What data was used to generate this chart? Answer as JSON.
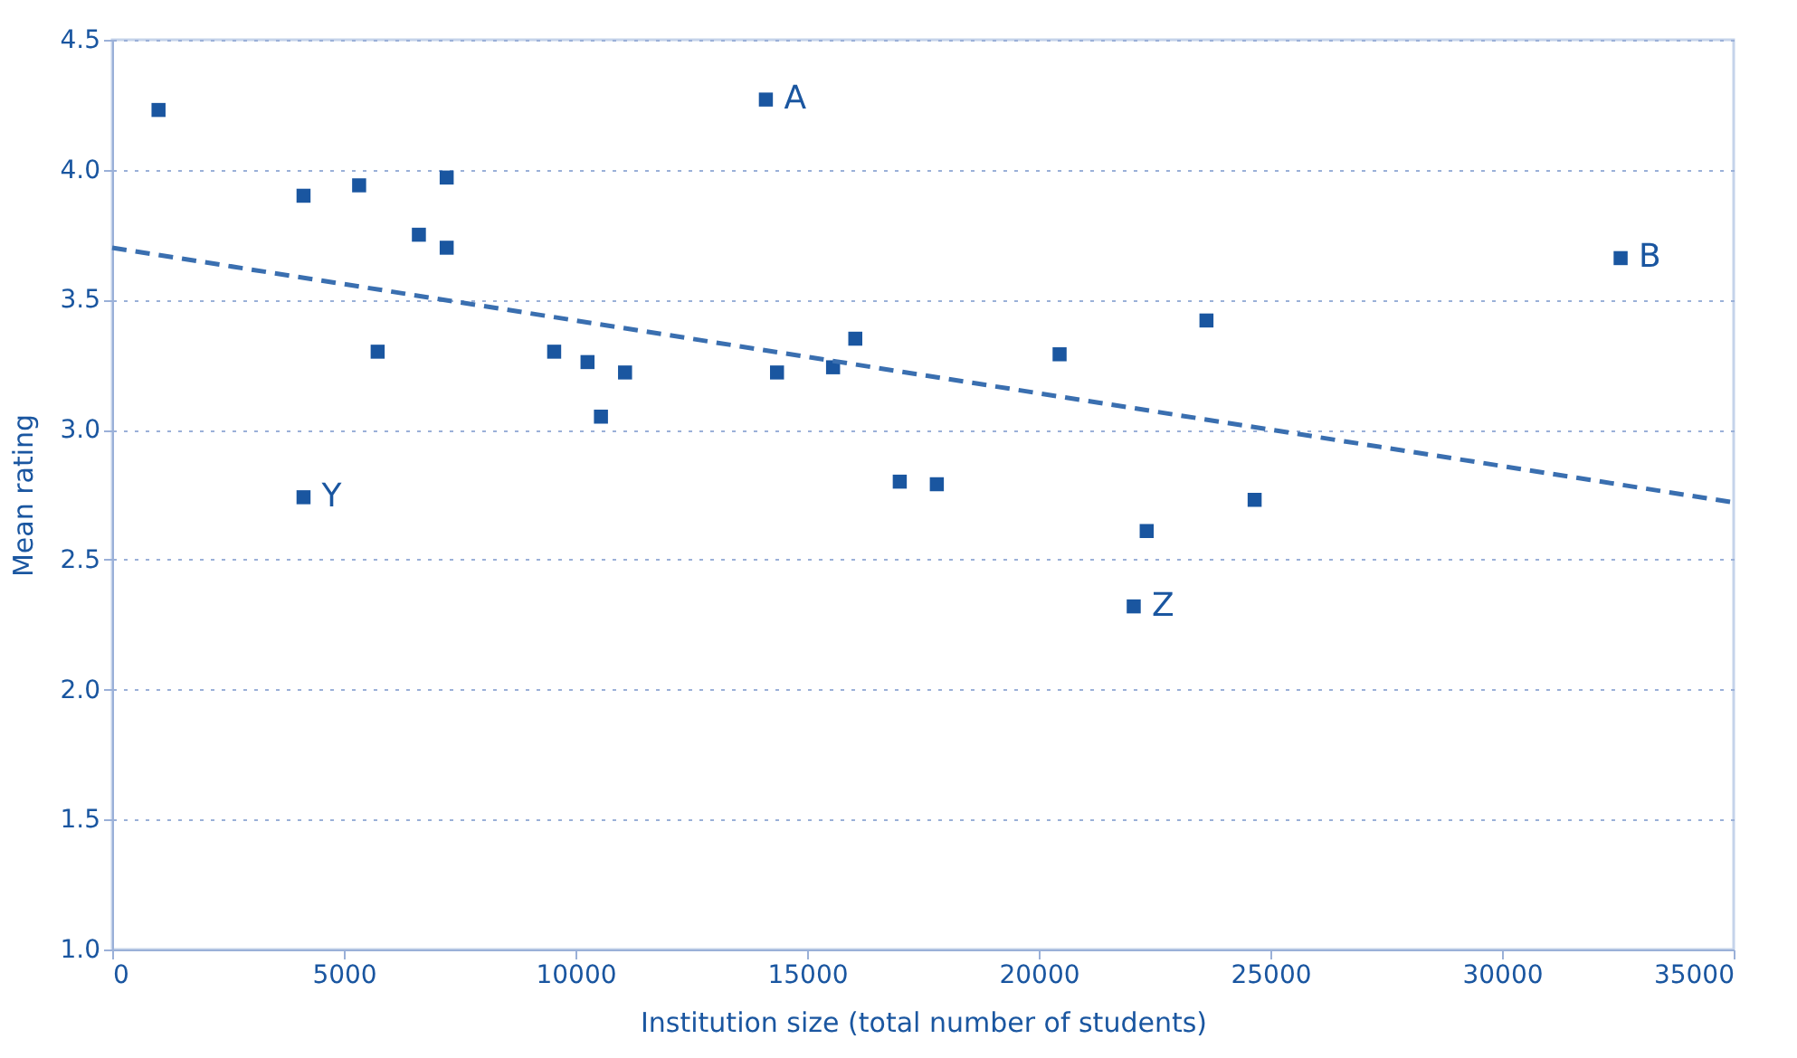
{
  "chart_data": {
    "type": "scatter",
    "xlabel": "Institution size (total number of students)",
    "ylabel": "Mean rating",
    "xlim": [
      0,
      35000
    ],
    "xticks": [
      0,
      5000,
      10000,
      15000,
      20000,
      25000,
      30000,
      35000
    ],
    "ylim": [
      1.0,
      4.5
    ],
    "yticks": [
      {
        "value": 1.0,
        "label": "1.0"
      },
      {
        "value": 1.5,
        "label": "1.5"
      },
      {
        "value": 2.0,
        "label": "2.0"
      },
      {
        "value": 2.5,
        "label": "2.5"
      },
      {
        "value": 3.0,
        "label": "3.0"
      },
      {
        "value": 3.5,
        "label": "3.5"
      },
      {
        "value": 4.0,
        "label": "4.0"
      },
      {
        "value": 4.5,
        "label": "4.5"
      }
    ],
    "grid": "y",
    "legend": false,
    "series": [
      {
        "type": "scatter",
        "color": "#1a56a0",
        "marker": "square",
        "x": [
          1000,
          4130,
          5330,
          7220,
          6620,
          7220,
          5730,
          4130,
          9540,
          10260,
          11070,
          10550,
          14110,
          14350,
          15560,
          16040,
          17000,
          17800,
          20450,
          23620,
          22330,
          22050,
          24660,
          32560
        ],
        "values": [
          4.23,
          3.9,
          3.94,
          3.97,
          3.75,
          3.7,
          3.3,
          2.74,
          3.3,
          3.26,
          3.22,
          3.05,
          4.27,
          3.22,
          3.24,
          3.35,
          2.8,
          2.79,
          3.29,
          3.42,
          2.61,
          2.32,
          2.73,
          3.66
        ]
      },
      {
        "type": "line",
        "color": "#3a6fb0",
        "line_style": "dashed",
        "marker": "none",
        "x": [
          0,
          35000
        ],
        "values": [
          3.7,
          2.72
        ]
      }
    ],
    "annotations": [
      {
        "text": "A",
        "x": 14110,
        "y": 4.27
      },
      {
        "text": "B",
        "x": 32560,
        "y": 3.66
      },
      {
        "text": "Y",
        "x": 4130,
        "y": 2.74
      },
      {
        "text": "Z",
        "x": 22050,
        "y": 2.32
      }
    ]
  }
}
